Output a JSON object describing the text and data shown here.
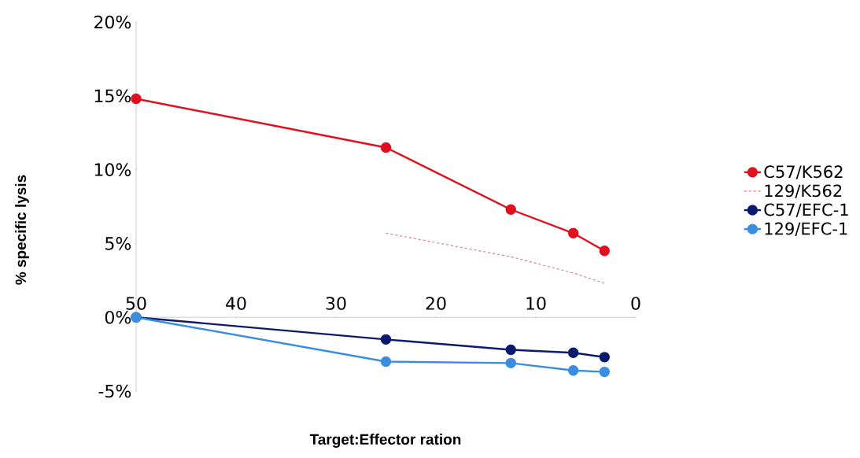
{
  "chart_data": {
    "type": "line",
    "xlabel": "Target:Effector ration",
    "ylabel": "% specific lysis",
    "x": [
      50,
      25,
      12.5,
      6.25,
      3.125
    ],
    "series": [
      {
        "name": "C57/K562",
        "color": "#e0101e",
        "values": [
          14.8,
          11.5,
          7.3,
          5.7,
          4.5
        ]
      },
      {
        "name": "129/K562",
        "color": "#e07a9a",
        "values": [
          null,
          5.7,
          4.1,
          3.0,
          2.3
        ],
        "marker": "none",
        "line_style": "dashed"
      },
      {
        "name": "C57/EFC-1",
        "color": "#0a1a6e",
        "values": [
          0,
          -1.5,
          -2.2,
          -2.4,
          -2.7
        ]
      },
      {
        "name": "129/EFC-1",
        "color": "#3a8ee0",
        "values": [
          0,
          -3.0,
          -3.1,
          -3.6,
          -3.7
        ]
      }
    ],
    "xlim": [
      50,
      0
    ],
    "xticks": [
      50,
      40,
      30,
      20,
      10,
      0
    ],
    "ylim": [
      -5,
      20
    ],
    "yticks": [
      {
        "value": -5,
        "label": "-5%"
      },
      {
        "value": 0,
        "label": "0%"
      },
      {
        "value": 5,
        "label": "5%"
      },
      {
        "value": 10,
        "label": "10%"
      },
      {
        "value": 15,
        "label": "15%"
      },
      {
        "value": 20,
        "label": "20%"
      }
    ],
    "marker": "circle",
    "line_style": "solid",
    "grid": false,
    "legend": "right"
  }
}
